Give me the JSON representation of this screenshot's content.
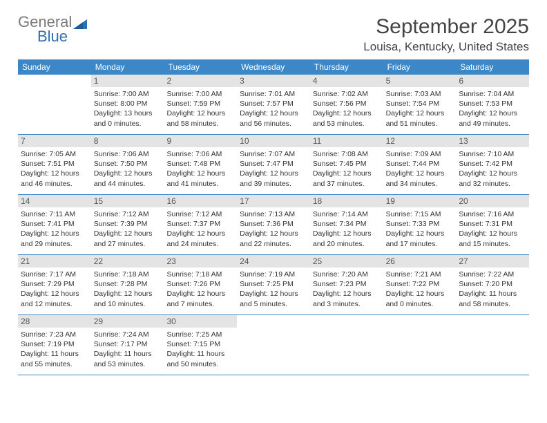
{
  "logo": {
    "word1": "General",
    "word2": "Blue"
  },
  "title": "September 2025",
  "location": "Louisa, Kentucky, United States",
  "day_headers": [
    "Sunday",
    "Monday",
    "Tuesday",
    "Wednesday",
    "Thursday",
    "Friday",
    "Saturday"
  ],
  "colors": {
    "header_bg": "#3b87c8",
    "header_text": "#ffffff",
    "daynum_bg": "#e4e4e4",
    "rule": "#3b87c8",
    "logo_gray": "#7a7a7a",
    "logo_blue": "#2d6fb3"
  },
  "weeks": [
    [
      null,
      {
        "n": "1",
        "sr": "7:00 AM",
        "ss": "8:00 PM",
        "dl": "13 hours and 0 minutes."
      },
      {
        "n": "2",
        "sr": "7:00 AM",
        "ss": "7:59 PM",
        "dl": "12 hours and 58 minutes."
      },
      {
        "n": "3",
        "sr": "7:01 AM",
        "ss": "7:57 PM",
        "dl": "12 hours and 56 minutes."
      },
      {
        "n": "4",
        "sr": "7:02 AM",
        "ss": "7:56 PM",
        "dl": "12 hours and 53 minutes."
      },
      {
        "n": "5",
        "sr": "7:03 AM",
        "ss": "7:54 PM",
        "dl": "12 hours and 51 minutes."
      },
      {
        "n": "6",
        "sr": "7:04 AM",
        "ss": "7:53 PM",
        "dl": "12 hours and 49 minutes."
      }
    ],
    [
      {
        "n": "7",
        "sr": "7:05 AM",
        "ss": "7:51 PM",
        "dl": "12 hours and 46 minutes."
      },
      {
        "n": "8",
        "sr": "7:06 AM",
        "ss": "7:50 PM",
        "dl": "12 hours and 44 minutes."
      },
      {
        "n": "9",
        "sr": "7:06 AM",
        "ss": "7:48 PM",
        "dl": "12 hours and 41 minutes."
      },
      {
        "n": "10",
        "sr": "7:07 AM",
        "ss": "7:47 PM",
        "dl": "12 hours and 39 minutes."
      },
      {
        "n": "11",
        "sr": "7:08 AM",
        "ss": "7:45 PM",
        "dl": "12 hours and 37 minutes."
      },
      {
        "n": "12",
        "sr": "7:09 AM",
        "ss": "7:44 PM",
        "dl": "12 hours and 34 minutes."
      },
      {
        "n": "13",
        "sr": "7:10 AM",
        "ss": "7:42 PM",
        "dl": "12 hours and 32 minutes."
      }
    ],
    [
      {
        "n": "14",
        "sr": "7:11 AM",
        "ss": "7:41 PM",
        "dl": "12 hours and 29 minutes."
      },
      {
        "n": "15",
        "sr": "7:12 AM",
        "ss": "7:39 PM",
        "dl": "12 hours and 27 minutes."
      },
      {
        "n": "16",
        "sr": "7:12 AM",
        "ss": "7:37 PM",
        "dl": "12 hours and 24 minutes."
      },
      {
        "n": "17",
        "sr": "7:13 AM",
        "ss": "7:36 PM",
        "dl": "12 hours and 22 minutes."
      },
      {
        "n": "18",
        "sr": "7:14 AM",
        "ss": "7:34 PM",
        "dl": "12 hours and 20 minutes."
      },
      {
        "n": "19",
        "sr": "7:15 AM",
        "ss": "7:33 PM",
        "dl": "12 hours and 17 minutes."
      },
      {
        "n": "20",
        "sr": "7:16 AM",
        "ss": "7:31 PM",
        "dl": "12 hours and 15 minutes."
      }
    ],
    [
      {
        "n": "21",
        "sr": "7:17 AM",
        "ss": "7:29 PM",
        "dl": "12 hours and 12 minutes."
      },
      {
        "n": "22",
        "sr": "7:18 AM",
        "ss": "7:28 PM",
        "dl": "12 hours and 10 minutes."
      },
      {
        "n": "23",
        "sr": "7:18 AM",
        "ss": "7:26 PM",
        "dl": "12 hours and 7 minutes."
      },
      {
        "n": "24",
        "sr": "7:19 AM",
        "ss": "7:25 PM",
        "dl": "12 hours and 5 minutes."
      },
      {
        "n": "25",
        "sr": "7:20 AM",
        "ss": "7:23 PM",
        "dl": "12 hours and 3 minutes."
      },
      {
        "n": "26",
        "sr": "7:21 AM",
        "ss": "7:22 PM",
        "dl": "12 hours and 0 minutes."
      },
      {
        "n": "27",
        "sr": "7:22 AM",
        "ss": "7:20 PM",
        "dl": "11 hours and 58 minutes."
      }
    ],
    [
      {
        "n": "28",
        "sr": "7:23 AM",
        "ss": "7:19 PM",
        "dl": "11 hours and 55 minutes."
      },
      {
        "n": "29",
        "sr": "7:24 AM",
        "ss": "7:17 PM",
        "dl": "11 hours and 53 minutes."
      },
      {
        "n": "30",
        "sr": "7:25 AM",
        "ss": "7:15 PM",
        "dl": "11 hours and 50 minutes."
      },
      null,
      null,
      null,
      null
    ]
  ],
  "labels": {
    "sunrise": "Sunrise:",
    "sunset": "Sunset:",
    "daylight": "Daylight:"
  }
}
